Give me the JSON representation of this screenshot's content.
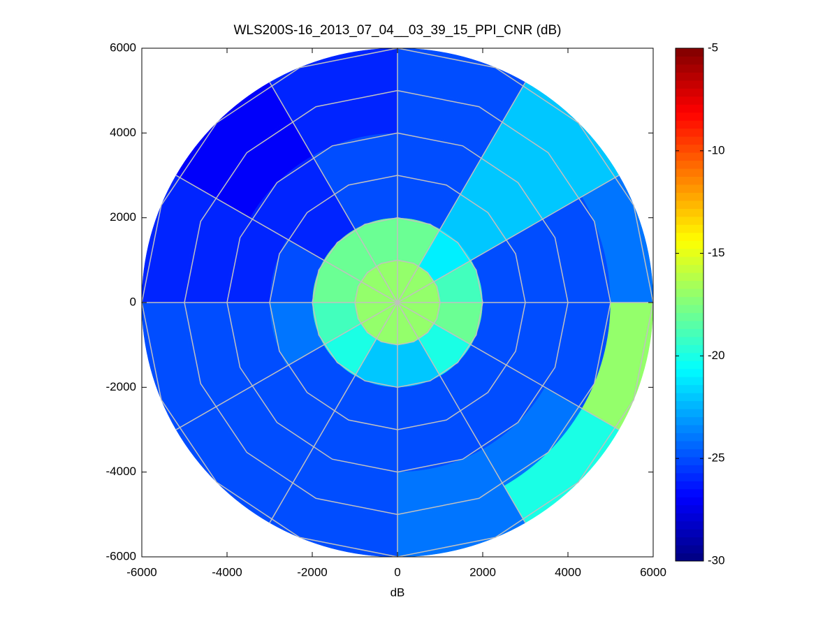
{
  "chart_data": {
    "type": "polar_heatmap",
    "title": "WLS200S-16_2013_07_04__03_39_15_PPI_CNR (dB)",
    "xlabel": "dB",
    "xlim": [
      -6000,
      6000
    ],
    "ylim": [
      -6000,
      6000
    ],
    "xticks": [
      -6000,
      -4000,
      -2000,
      0,
      2000,
      4000,
      6000
    ],
    "yticks": [
      -6000,
      -4000,
      -2000,
      0,
      2000,
      4000,
      6000
    ],
    "ranges": [
      0,
      1000,
      2000,
      3000,
      4000,
      5000,
      6000
    ],
    "azimuths": [
      0,
      30,
      60,
      90,
      120,
      150,
      180,
      210,
      240,
      270,
      300,
      330,
      360
    ],
    "values": [
      [
        -17,
        -17,
        -17,
        -17,
        -17,
        -17,
        -17,
        -17,
        -17,
        -17,
        -17,
        -17
      ],
      [
        -18,
        -21,
        -19,
        -18,
        -20,
        -22,
        -22,
        -20,
        -19,
        -18,
        -18,
        -18
      ],
      [
        -25,
        -22,
        -25,
        -25,
        -25,
        -25,
        -25,
        -25,
        -24,
        -25,
        -26,
        -25
      ],
      [
        -25,
        -22,
        -25,
        -25,
        -25,
        -25,
        -25,
        -25,
        -25,
        -26,
        -26,
        -25
      ],
      [
        -25,
        -22,
        -25,
        -25,
        -24,
        -24,
        -25,
        -25,
        -25,
        -26,
        -27,
        -26
      ],
      [
        -25,
        -22,
        -24,
        -17,
        -20,
        -24,
        -25,
        -25,
        -25,
        -26,
        -27,
        -26
      ]
    ],
    "clim": [
      -30,
      -5
    ],
    "cticks": [
      -30,
      -25,
      -20,
      -15,
      -10,
      -5
    ],
    "grid": true
  }
}
